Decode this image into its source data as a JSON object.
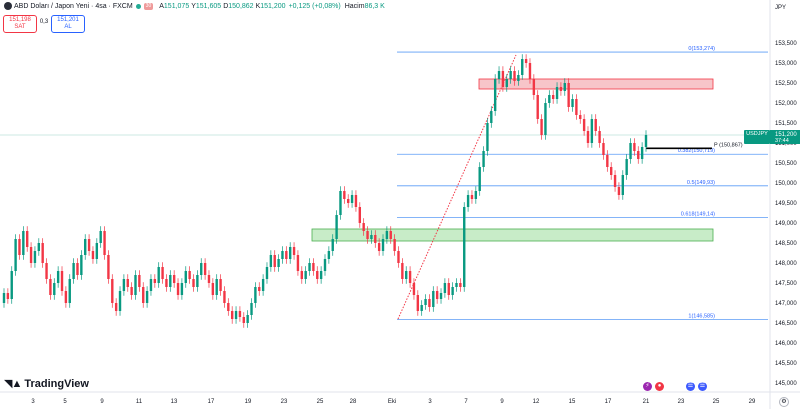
{
  "header": {
    "symbol_line": "ABD Doları / Japon Yeni · 4sa · FXCM",
    "badge": "30",
    "ohlc": [
      {
        "k": "A",
        "v": "151,075"
      },
      {
        "k": "Y",
        "v": "151,605"
      },
      {
        "k": "D",
        "v": "150,862"
      },
      {
        "k": "K",
        "v": "151,200"
      }
    ],
    "change": "+0,125 (+0,08%)",
    "volume_label": "Hacim",
    "volume_value": "86,3 K"
  },
  "trade": {
    "sell_price": "151,198",
    "sell_label": "SAT",
    "spread": "0,3",
    "buy_price": "151,201",
    "buy_label": "AL"
  },
  "currency": "JPY",
  "brand": "TradingView",
  "icons": [
    "tradingview-logo-icon",
    "flag-icon",
    "lightning-icon",
    "earnings-icon",
    "us-flag-icon",
    "gear-icon"
  ],
  "colors": {
    "up": "#089981",
    "down": "#f23645",
    "fib_line": "#5b9cf6",
    "resistance_zone": "#f7c5c9",
    "support_zone": "#c8ecc8",
    "trend_line": "#f23645"
  },
  "chart_data": {
    "type": "candlestick",
    "symbol": "USDJPY",
    "timeframe": "4sa",
    "ylim": [
      144.5,
      153.75
    ],
    "y_ticks": [
      "153,500",
      "153,000",
      "152,500",
      "152,000",
      "151,500",
      "151,000",
      "150,500",
      "150,000",
      "149,500",
      "149,000",
      "148,500",
      "148,000",
      "147,500",
      "147,000",
      "146,500",
      "146,000",
      "145,500",
      "145,000"
    ],
    "x_ticks": [
      "3",
      "5",
      "9",
      "11",
      "13",
      "17",
      "19",
      "23",
      "25",
      "28",
      "Eki",
      "3",
      "7",
      "9",
      "12",
      "15",
      "17",
      "21",
      "23",
      "25",
      "29"
    ],
    "current_price": {
      "symbol": "USDJPY",
      "value": "151,200",
      "countdown": "37:44",
      "value_num": 151.2
    },
    "pivot": {
      "label": "P (150,867)",
      "value": 150.867
    },
    "fib_levels": [
      {
        "label": "0(153,274)",
        "value": 153.274
      },
      {
        "label": "0.382(150,719)",
        "value": 150.719
      },
      {
        "label": "0.5(149,93)",
        "value": 149.93
      },
      {
        "label": "0.618(149,14)",
        "value": 149.14
      },
      {
        "label": "1(146,585)",
        "value": 146.585
      }
    ],
    "zones": [
      {
        "kind": "resistance",
        "low": 152.35,
        "high": 152.6
      },
      {
        "kind": "support",
        "low": 148.55,
        "high": 148.85
      }
    ],
    "trendline": {
      "from": 146.6,
      "to": 153.2
    },
    "series": [
      {
        "type": "ohlc",
        "points": [
          [
            147.0,
            147.25
          ],
          [
            147.25,
            147.1
          ],
          [
            147.1,
            147.8
          ],
          [
            147.8,
            148.6
          ],
          [
            148.6,
            148.2
          ],
          [
            148.2,
            148.8
          ],
          [
            148.8,
            148.4
          ],
          [
            148.4,
            148.0
          ],
          [
            148.0,
            148.3
          ],
          [
            148.3,
            148.5
          ],
          [
            148.5,
            148.0
          ],
          [
            148.0,
            147.6
          ],
          [
            147.6,
            147.2
          ],
          [
            147.2,
            147.5
          ],
          [
            147.5,
            147.8
          ],
          [
            147.8,
            147.3
          ],
          [
            147.3,
            147.0
          ],
          [
            147.0,
            147.6
          ],
          [
            147.6,
            148.0
          ],
          [
            148.0,
            147.7
          ],
          [
            147.7,
            148.2
          ],
          [
            148.2,
            148.6
          ],
          [
            148.6,
            148.3
          ],
          [
            148.3,
            148.1
          ],
          [
            148.1,
            148.5
          ],
          [
            148.5,
            148.8
          ],
          [
            148.8,
            148.2
          ],
          [
            148.2,
            147.6
          ],
          [
            147.6,
            147.0
          ],
          [
            147.0,
            146.8
          ],
          [
            146.8,
            147.3
          ],
          [
            147.3,
            147.6
          ],
          [
            147.6,
            147.4
          ],
          [
            147.4,
            147.2
          ],
          [
            147.2,
            147.7
          ],
          [
            147.7,
            147.4
          ],
          [
            147.4,
            147.0
          ],
          [
            147.0,
            147.3
          ],
          [
            147.3,
            147.6
          ],
          [
            147.6,
            147.5
          ],
          [
            147.5,
            147.9
          ],
          [
            147.9,
            147.6
          ],
          [
            147.6,
            147.4
          ],
          [
            147.4,
            147.7
          ],
          [
            147.7,
            147.5
          ],
          [
            147.5,
            147.2
          ],
          [
            147.2,
            147.5
          ],
          [
            147.5,
            147.8
          ],
          [
            147.8,
            147.6
          ],
          [
            147.6,
            147.4
          ],
          [
            147.4,
            147.7
          ],
          [
            147.7,
            148.0
          ],
          [
            148.0,
            147.7
          ],
          [
            147.7,
            147.5
          ],
          [
            147.5,
            147.2
          ],
          [
            147.2,
            147.6
          ],
          [
            147.6,
            147.3
          ],
          [
            147.3,
            147.0
          ],
          [
            147.0,
            146.8
          ],
          [
            146.8,
            146.6
          ],
          [
            146.6,
            146.8
          ],
          [
            146.8,
            146.65
          ],
          [
            146.65,
            146.5
          ],
          [
            146.5,
            146.7
          ],
          [
            146.7,
            147.0
          ],
          [
            147.0,
            147.4
          ],
          [
            147.4,
            147.3
          ],
          [
            147.3,
            147.6
          ],
          [
            147.6,
            147.9
          ],
          [
            147.9,
            148.2
          ],
          [
            148.2,
            147.9
          ],
          [
            147.9,
            148.1
          ],
          [
            148.1,
            148.3
          ],
          [
            148.3,
            148.1
          ],
          [
            148.1,
            148.4
          ],
          [
            148.4,
            148.2
          ],
          [
            148.2,
            147.8
          ],
          [
            147.8,
            147.6
          ],
          [
            147.6,
            147.8
          ],
          [
            147.8,
            148.0
          ],
          [
            148.0,
            147.8
          ],
          [
            147.8,
            147.6
          ],
          [
            147.6,
            147.8
          ],
          [
            147.8,
            148.1
          ],
          [
            148.1,
            148.3
          ],
          [
            148.3,
            148.6
          ],
          [
            148.6,
            149.2
          ],
          [
            149.2,
            149.8
          ],
          [
            149.8,
            149.6
          ],
          [
            149.6,
            149.5
          ],
          [
            149.5,
            149.7
          ],
          [
            149.7,
            149.4
          ],
          [
            149.4,
            149.0
          ],
          [
            149.0,
            148.8
          ],
          [
            148.8,
            148.6
          ],
          [
            148.6,
            148.7
          ],
          [
            148.7,
            148.5
          ],
          [
            148.5,
            148.3
          ],
          [
            148.3,
            148.6
          ],
          [
            148.6,
            148.8
          ],
          [
            148.8,
            148.6
          ],
          [
            148.6,
            148.3
          ],
          [
            148.3,
            148.0
          ],
          [
            148.0,
            147.6
          ],
          [
            147.6,
            147.8
          ],
          [
            147.8,
            147.5
          ],
          [
            147.5,
            147.2
          ],
          [
            147.2,
            146.8
          ],
          [
            146.8,
            146.95
          ],
          [
            146.95,
            147.1
          ],
          [
            147.1,
            146.9
          ],
          [
            146.9,
            147.3
          ],
          [
            147.3,
            147.1
          ],
          [
            147.1,
            147.25
          ],
          [
            147.25,
            147.5
          ],
          [
            147.5,
            147.2
          ],
          [
            147.2,
            147.4
          ],
          [
            147.4,
            147.5
          ],
          [
            147.5,
            147.4
          ],
          [
            147.4,
            149.4
          ],
          [
            149.4,
            149.7
          ],
          [
            149.7,
            149.6
          ],
          [
            149.6,
            149.8
          ],
          [
            149.8,
            150.4
          ],
          [
            150.4,
            150.8
          ],
          [
            150.8,
            151.5
          ],
          [
            151.5,
            151.8
          ],
          [
            151.8,
            152.6
          ],
          [
            152.6,
            152.8
          ],
          [
            152.8,
            152.4
          ],
          [
            152.4,
            152.6
          ],
          [
            152.6,
            152.8
          ],
          [
            152.8,
            152.55
          ],
          [
            152.55,
            152.7
          ],
          [
            152.7,
            153.1
          ],
          [
            153.1,
            153.0
          ],
          [
            153.0,
            152.6
          ],
          [
            152.6,
            152.2
          ],
          [
            152.2,
            151.6
          ],
          [
            151.6,
            151.2
          ],
          [
            151.2,
            152.0
          ],
          [
            152.0,
            152.2
          ],
          [
            152.2,
            152.1
          ],
          [
            152.1,
            152.4
          ],
          [
            152.4,
            152.3
          ],
          [
            152.3,
            152.5
          ],
          [
            152.5,
            151.9
          ],
          [
            151.9,
            152.1
          ],
          [
            152.1,
            151.7
          ],
          [
            151.7,
            151.6
          ],
          [
            151.6,
            151.3
          ],
          [
            151.3,
            151.0
          ],
          [
            151.0,
            151.6
          ],
          [
            151.6,
            151.3
          ],
          [
            151.3,
            151.0
          ],
          [
            151.0,
            150.7
          ],
          [
            150.7,
            150.4
          ],
          [
            150.4,
            150.2
          ],
          [
            150.2,
            149.9
          ],
          [
            149.9,
            149.7
          ],
          [
            149.7,
            150.2
          ],
          [
            150.2,
            150.6
          ],
          [
            150.6,
            151.0
          ],
          [
            151.0,
            150.8
          ],
          [
            150.8,
            150.6
          ],
          [
            150.6,
            150.9
          ],
          [
            150.9,
            151.2
          ]
        ]
      }
    ]
  }
}
